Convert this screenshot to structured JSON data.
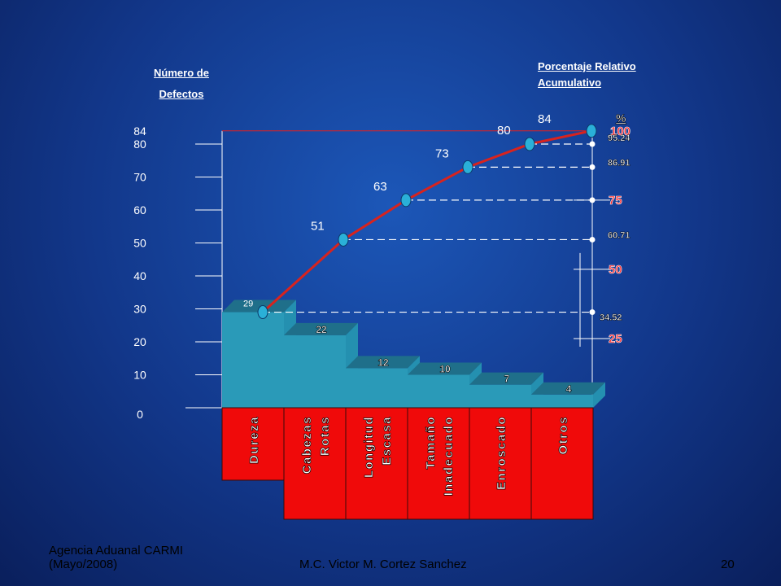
{
  "left_axis_title": [
    "Número de",
    "Defectos"
  ],
  "right_axis_title": [
    "Porcentaje Relativo",
    "Acumulativo"
  ],
  "footer": {
    "left": [
      "Agencia Aduanal CARMI",
      "(Mayo/2008)"
    ],
    "center": "M.C. Victor M. Cortez Sanchez",
    "page": "20"
  },
  "colors": {
    "bar": "#2a9ab8",
    "bar_top": "#1f6f8a",
    "bar_side": "#2490b0",
    "line": "#d8231e",
    "marker": "#2ab0d8",
    "label_panel": "#f00a0a",
    "percent_red": "#ff2020"
  },
  "chart_data": {
    "type": "bar",
    "title": "",
    "categories": [
      "Dureza",
      "Cabezas Rotas",
      "Longitud Escasa",
      "Tamaño Inadecuado",
      "Enroscado",
      "Otros"
    ],
    "category_lines": [
      [
        "Dureza"
      ],
      [
        "Cabezas",
        "Rotas"
      ],
      [
        "Longitud",
        "Escasa"
      ],
      [
        "Tamaño",
        "Inadecuado"
      ],
      [
        "Enroscado"
      ],
      [
        "Otros"
      ]
    ],
    "values": [
      29,
      22,
      12,
      10,
      7,
      4
    ],
    "cumulative": [
      29,
      51,
      63,
      73,
      80,
      84
    ],
    "cumulative_percent": [
      "34.52",
      "60.71",
      "75",
      "86.91",
      "95.24",
      "100"
    ],
    "ylim": [
      0,
      84
    ],
    "yticks": [
      0,
      10,
      20,
      30,
      40,
      50,
      60,
      70,
      80,
      84
    ],
    "right_axis": {
      "unit_label": "%",
      "max_label": "84",
      "major_ticks": [
        "25",
        "50",
        "75",
        "100"
      ],
      "cumulative_labels": [
        "34.52",
        "60.71",
        "86.91",
        "95.24"
      ]
    }
  }
}
